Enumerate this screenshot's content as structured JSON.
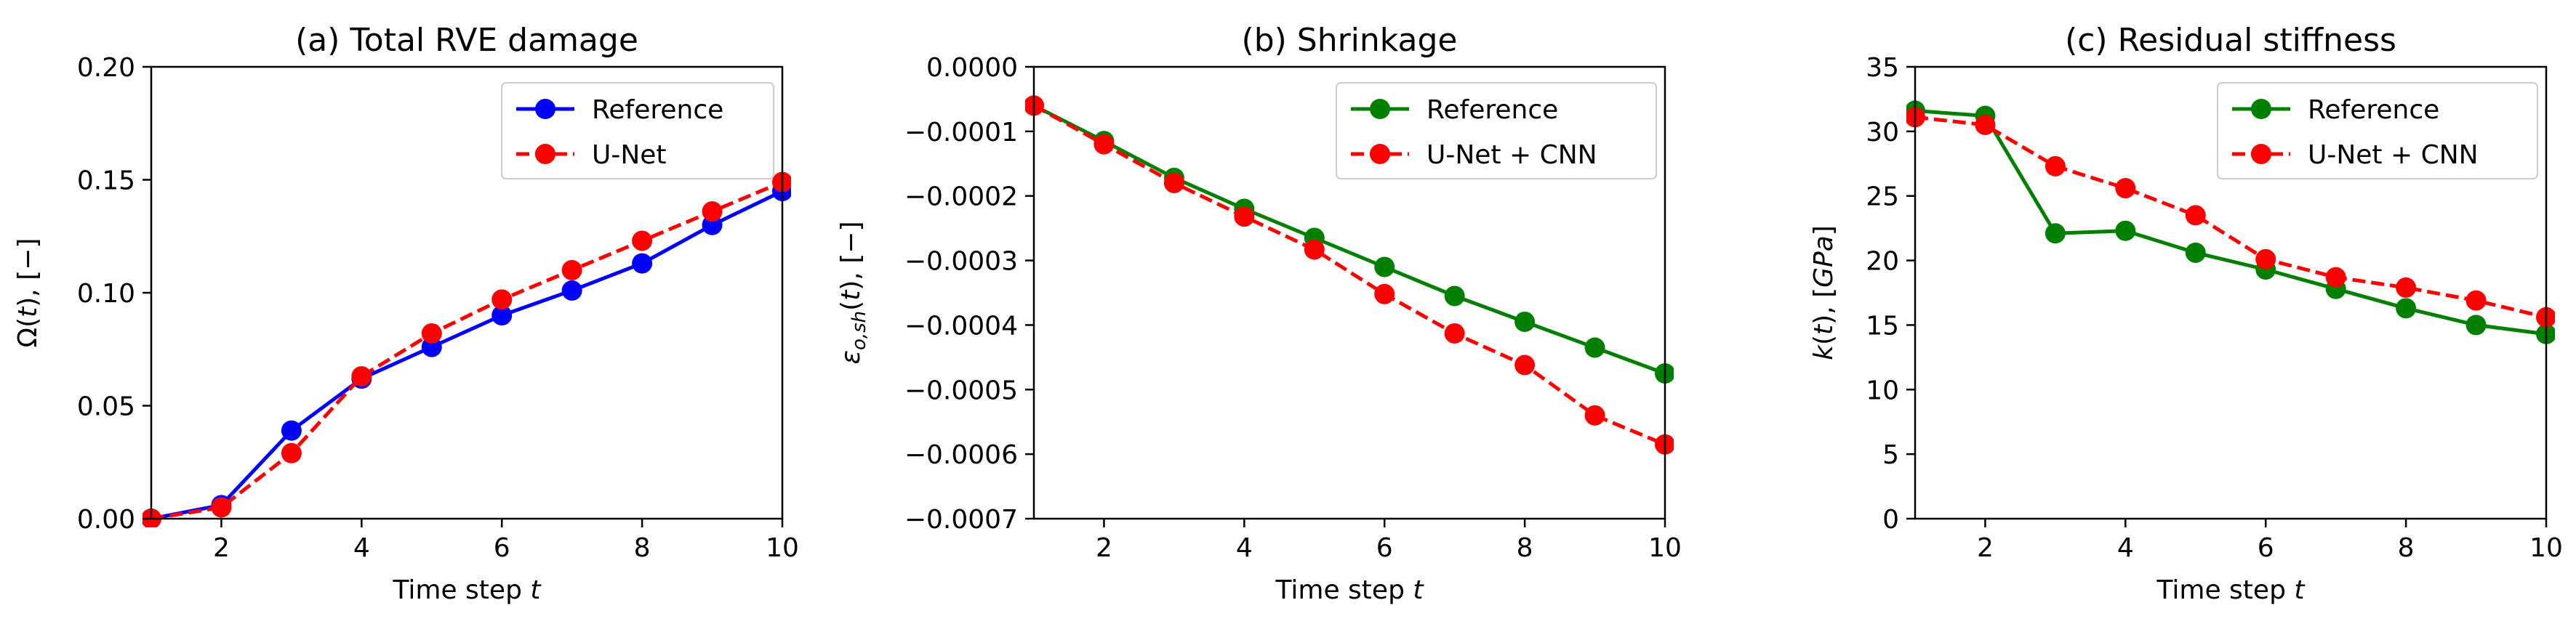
{
  "chart_data": [
    {
      "type": "line",
      "title": "(a) Total RVE damage",
      "xlabel": "Time step t",
      "ylabel": "Ω(t), [−]",
      "xlim": [
        1,
        10
      ],
      "ylim": [
        0,
        0.2
      ],
      "x_ticks": [
        2,
        4,
        6,
        8,
        10
      ],
      "y_ticks": [
        0,
        0.05,
        0.1,
        0.15,
        0.2
      ],
      "y_tick_labels": [
        "0.00",
        "0.05",
        "0.10",
        "0.15",
        "0.20"
      ],
      "legend_position": "top-right",
      "x": [
        1,
        2,
        3,
        4,
        5,
        6,
        7,
        8,
        9,
        10
      ],
      "series": [
        {
          "name": "Reference",
          "color": "#0000ff",
          "dash": "solid",
          "values": [
            0.0,
            0.006,
            0.039,
            0.062,
            0.076,
            0.09,
            0.101,
            0.113,
            0.13,
            0.145
          ]
        },
        {
          "name": "U-Net",
          "color": "#ff0000",
          "dash": "dashed",
          "values": [
            0.0,
            0.005,
            0.029,
            0.063,
            0.082,
            0.097,
            0.11,
            0.123,
            0.136,
            0.149
          ]
        }
      ]
    },
    {
      "type": "line",
      "title": "(b) Shrinkage",
      "xlabel": "Time step t",
      "ylabel": "εo,sh(t), [−]",
      "xlim": [
        1,
        10
      ],
      "ylim": [
        -0.0007,
        0
      ],
      "x_ticks": [
        2,
        4,
        6,
        8,
        10
      ],
      "y_ticks": [
        -0.0007,
        -0.0006,
        -0.0005,
        -0.0004,
        -0.0003,
        -0.0002,
        -0.0001,
        0
      ],
      "y_tick_labels": [
        "−0.0007",
        "−0.0006",
        "−0.0005",
        "−0.0004",
        "−0.0003",
        "−0.0002",
        "−0.0001",
        "0.0000"
      ],
      "legend_position": "top-right",
      "x": [
        1,
        2,
        3,
        4,
        5,
        6,
        7,
        8,
        9,
        10
      ],
      "series": [
        {
          "name": "Reference",
          "color": "#008000",
          "dash": "solid",
          "values": [
            -6e-05,
            -0.000115,
            -0.000172,
            -0.00022,
            -0.000265,
            -0.00031,
            -0.000355,
            -0.000395,
            -0.000435,
            -0.000475
          ]
        },
        {
          "name": "U-Net + CNN",
          "color": "#ff0000",
          "dash": "dashed",
          "values": [
            -6e-05,
            -0.00012,
            -0.00018,
            -0.000232,
            -0.000283,
            -0.000352,
            -0.000413,
            -0.000462,
            -0.00054,
            -0.000585
          ]
        }
      ]
    },
    {
      "type": "line",
      "title": "(c) Residual stiffness",
      "xlabel": "Time step t",
      "ylabel": "k(t), [GPa]",
      "xlim": [
        1,
        10
      ],
      "ylim": [
        0,
        35
      ],
      "x_ticks": [
        2,
        4,
        6,
        8,
        10
      ],
      "y_ticks": [
        0,
        5,
        10,
        15,
        20,
        25,
        30,
        35
      ],
      "y_tick_labels": [
        "0",
        "5",
        "10",
        "15",
        "20",
        "25",
        "30",
        "35"
      ],
      "legend_position": "top-right",
      "x": [
        1,
        2,
        3,
        4,
        5,
        6,
        7,
        8,
        9,
        10
      ],
      "series": [
        {
          "name": "Reference",
          "color": "#008000",
          "dash": "solid",
          "values": [
            31.6,
            31.2,
            22.1,
            22.3,
            20.6,
            19.3,
            17.8,
            16.3,
            15.0,
            14.3
          ]
        },
        {
          "name": "U-Net + CNN",
          "color": "#ff0000",
          "dash": "dashed",
          "values": [
            31.1,
            30.5,
            27.3,
            25.6,
            23.5,
            20.1,
            18.7,
            17.9,
            16.9,
            15.6
          ]
        }
      ]
    }
  ]
}
